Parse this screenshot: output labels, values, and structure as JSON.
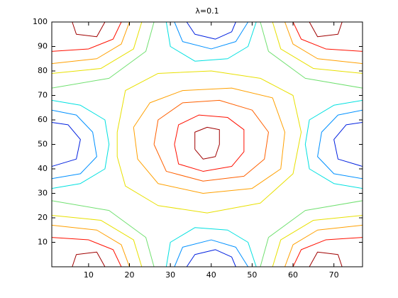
{
  "chart_data": {
    "type": "contour",
    "title": "λ=0.1",
    "xlim": [
      1,
      77
    ],
    "ylim": [
      0,
      100
    ],
    "xticks": [
      10,
      20,
      30,
      40,
      50,
      60,
      70
    ],
    "yticks": [
      10,
      20,
      30,
      40,
      50,
      60,
      70,
      80,
      90,
      100
    ],
    "contours": [
      {
        "color": "#a00000",
        "x": [
          6,
          7,
          12,
          14
        ],
        "y": [
          100,
          95,
          94,
          100
        ]
      },
      {
        "color": "#ff1000",
        "x": [
          18,
          16,
          10,
          1
        ],
        "y": [
          100,
          93,
          89,
          88
        ]
      },
      {
        "color": "#ffa000",
        "x": [
          20,
          18,
          12,
          1
        ],
        "y": [
          100,
          91,
          85,
          83
        ]
      },
      {
        "color": "#e8e000",
        "x": [
          23,
          21,
          13,
          1
        ],
        "y": [
          100,
          89,
          81,
          79
        ]
      },
      {
        "color": "#70e070",
        "x": [
          26,
          24,
          15,
          1
        ],
        "y": [
          100,
          88,
          77,
          73
        ]
      },
      {
        "color": "#a00000",
        "x": [
          72,
          71,
          66,
          64
        ],
        "y": [
          100,
          95,
          94,
          100
        ]
      },
      {
        "color": "#ff1000",
        "x": [
          60,
          62,
          68,
          77
        ],
        "y": [
          100,
          93,
          89,
          88
        ]
      },
      {
        "color": "#ffa000",
        "x": [
          58,
          60,
          66,
          77
        ],
        "y": [
          100,
          91,
          85,
          83
        ]
      },
      {
        "color": "#e8e000",
        "x": [
          55,
          57,
          65,
          77
        ],
        "y": [
          100,
          89,
          81,
          79
        ]
      },
      {
        "color": "#70e070",
        "x": [
          52,
          54,
          63,
          77
        ],
        "y": [
          100,
          88,
          77,
          73
        ]
      },
      {
        "color": "#a00000",
        "x": [
          6,
          7,
          12,
          14
        ],
        "y": [
          0,
          5,
          6,
          0
        ]
      },
      {
        "color": "#ff1000",
        "x": [
          18,
          16,
          10,
          1
        ],
        "y": [
          0,
          7,
          11,
          12
        ]
      },
      {
        "color": "#ffa000",
        "x": [
          20,
          18,
          12,
          1
        ],
        "y": [
          0,
          9,
          15,
          17
        ]
      },
      {
        "color": "#e8e000",
        "x": [
          23,
          21,
          13,
          1
        ],
        "y": [
          0,
          11,
          19,
          21
        ]
      },
      {
        "color": "#70e070",
        "x": [
          26,
          24,
          15,
          1
        ],
        "y": [
          0,
          12,
          23,
          27
        ]
      },
      {
        "color": "#a00000",
        "x": [
          72,
          71,
          66,
          64
        ],
        "y": [
          0,
          5,
          6,
          0
        ]
      },
      {
        "color": "#ff1000",
        "x": [
          60,
          62,
          68,
          77
        ],
        "y": [
          0,
          7,
          11,
          12
        ]
      },
      {
        "color": "#ffa000",
        "x": [
          58,
          60,
          66,
          77
        ],
        "y": [
          0,
          9,
          15,
          17
        ]
      },
      {
        "color": "#e8e000",
        "x": [
          55,
          57,
          65,
          77
        ],
        "y": [
          0,
          11,
          19,
          21
        ]
      },
      {
        "color": "#70e070",
        "x": [
          52,
          54,
          63,
          77
        ],
        "y": [
          0,
          12,
          23,
          27
        ]
      },
      {
        "color": "#00e0e0",
        "x": [
          29,
          30,
          36,
          44,
          49,
          51
        ],
        "y": [
          100,
          90,
          84,
          85,
          90,
          100
        ]
      },
      {
        "color": "#0090ff",
        "x": [
          31,
          33,
          40,
          46,
          49
        ],
        "y": [
          100,
          92,
          89,
          92,
          100
        ]
      },
      {
        "color": "#0020e0",
        "x": [
          34,
          36,
          41,
          45,
          46
        ],
        "y": [
          100,
          95,
          93,
          96,
          100
        ]
      },
      {
        "color": "#00e0e0",
        "x": [
          29,
          30,
          36,
          44,
          49,
          51
        ],
        "y": [
          0,
          10,
          16,
          15,
          10,
          0
        ]
      },
      {
        "color": "#0090ff",
        "x": [
          31,
          33,
          40,
          46,
          49
        ],
        "y": [
          0,
          8,
          11,
          8,
          0
        ]
      },
      {
        "color": "#0020e0",
        "x": [
          34,
          36,
          41,
          45,
          46
        ],
        "y": [
          0,
          5,
          7,
          4,
          0
        ]
      },
      {
        "color": "#00e0e0",
        "x": [
          1,
          8,
          14,
          15,
          14,
          8,
          1
        ],
        "y": [
          68,
          66,
          60,
          50,
          40,
          34,
          32
        ]
      },
      {
        "color": "#0090ff",
        "x": [
          1,
          7,
          11,
          12,
          8,
          1
        ],
        "y": [
          64,
          62,
          55,
          45,
          38,
          36
        ]
      },
      {
        "color": "#0020e0",
        "x": [
          1,
          5,
          8,
          7,
          1
        ],
        "y": [
          59,
          58,
          52,
          44,
          41
        ]
      },
      {
        "color": "#00e0e0",
        "x": [
          77,
          70,
          64,
          63,
          64,
          70,
          77
        ],
        "y": [
          68,
          66,
          60,
          50,
          40,
          34,
          32
        ]
      },
      {
        "color": "#0090ff",
        "x": [
          77,
          71,
          67,
          66,
          70,
          77
        ],
        "y": [
          64,
          62,
          55,
          45,
          38,
          36
        ]
      },
      {
        "color": "#0020e0",
        "x": [
          77,
          73,
          70,
          71,
          77
        ],
        "y": [
          59,
          58,
          52,
          44,
          41
        ]
      },
      {
        "color": "#a00000",
        "x": [
          36,
          36,
          39,
          42,
          42,
          41,
          38,
          36
        ],
        "y": [
          48,
          55,
          57,
          56,
          50,
          45,
          44,
          48
        ]
      },
      {
        "color": "#ff1000",
        "x": [
          31,
          32,
          37,
          44,
          48,
          48,
          45,
          38,
          32,
          31
        ],
        "y": [
          50,
          58,
          62,
          61,
          56,
          47,
          41,
          39,
          42,
          50
        ]
      },
      {
        "color": "#ff6000",
        "x": [
          26,
          27,
          33,
          42,
          50,
          54,
          53,
          48,
          38,
          29,
          26
        ],
        "y": [
          50,
          60,
          67,
          68,
          64,
          55,
          44,
          37,
          35,
          39,
          50
        ]
      },
      {
        "color": "#ffa000",
        "x": [
          21,
          25,
          33,
          45,
          55,
          58,
          57,
          50,
          38,
          27,
          22,
          21
        ],
        "y": [
          57,
          67,
          72,
          73,
          69,
          55,
          40,
          32,
          30,
          34,
          44,
          57
        ]
      },
      {
        "color": "#e8e000",
        "x": [
          17,
          19,
          27,
          40,
          52,
          60,
          62,
          60,
          52,
          39,
          27,
          19,
          17,
          17
        ],
        "y": [
          55,
          72,
          79,
          80,
          77,
          70,
          55,
          38,
          26,
          22,
          25,
          33,
          45,
          55
        ]
      }
    ]
  }
}
